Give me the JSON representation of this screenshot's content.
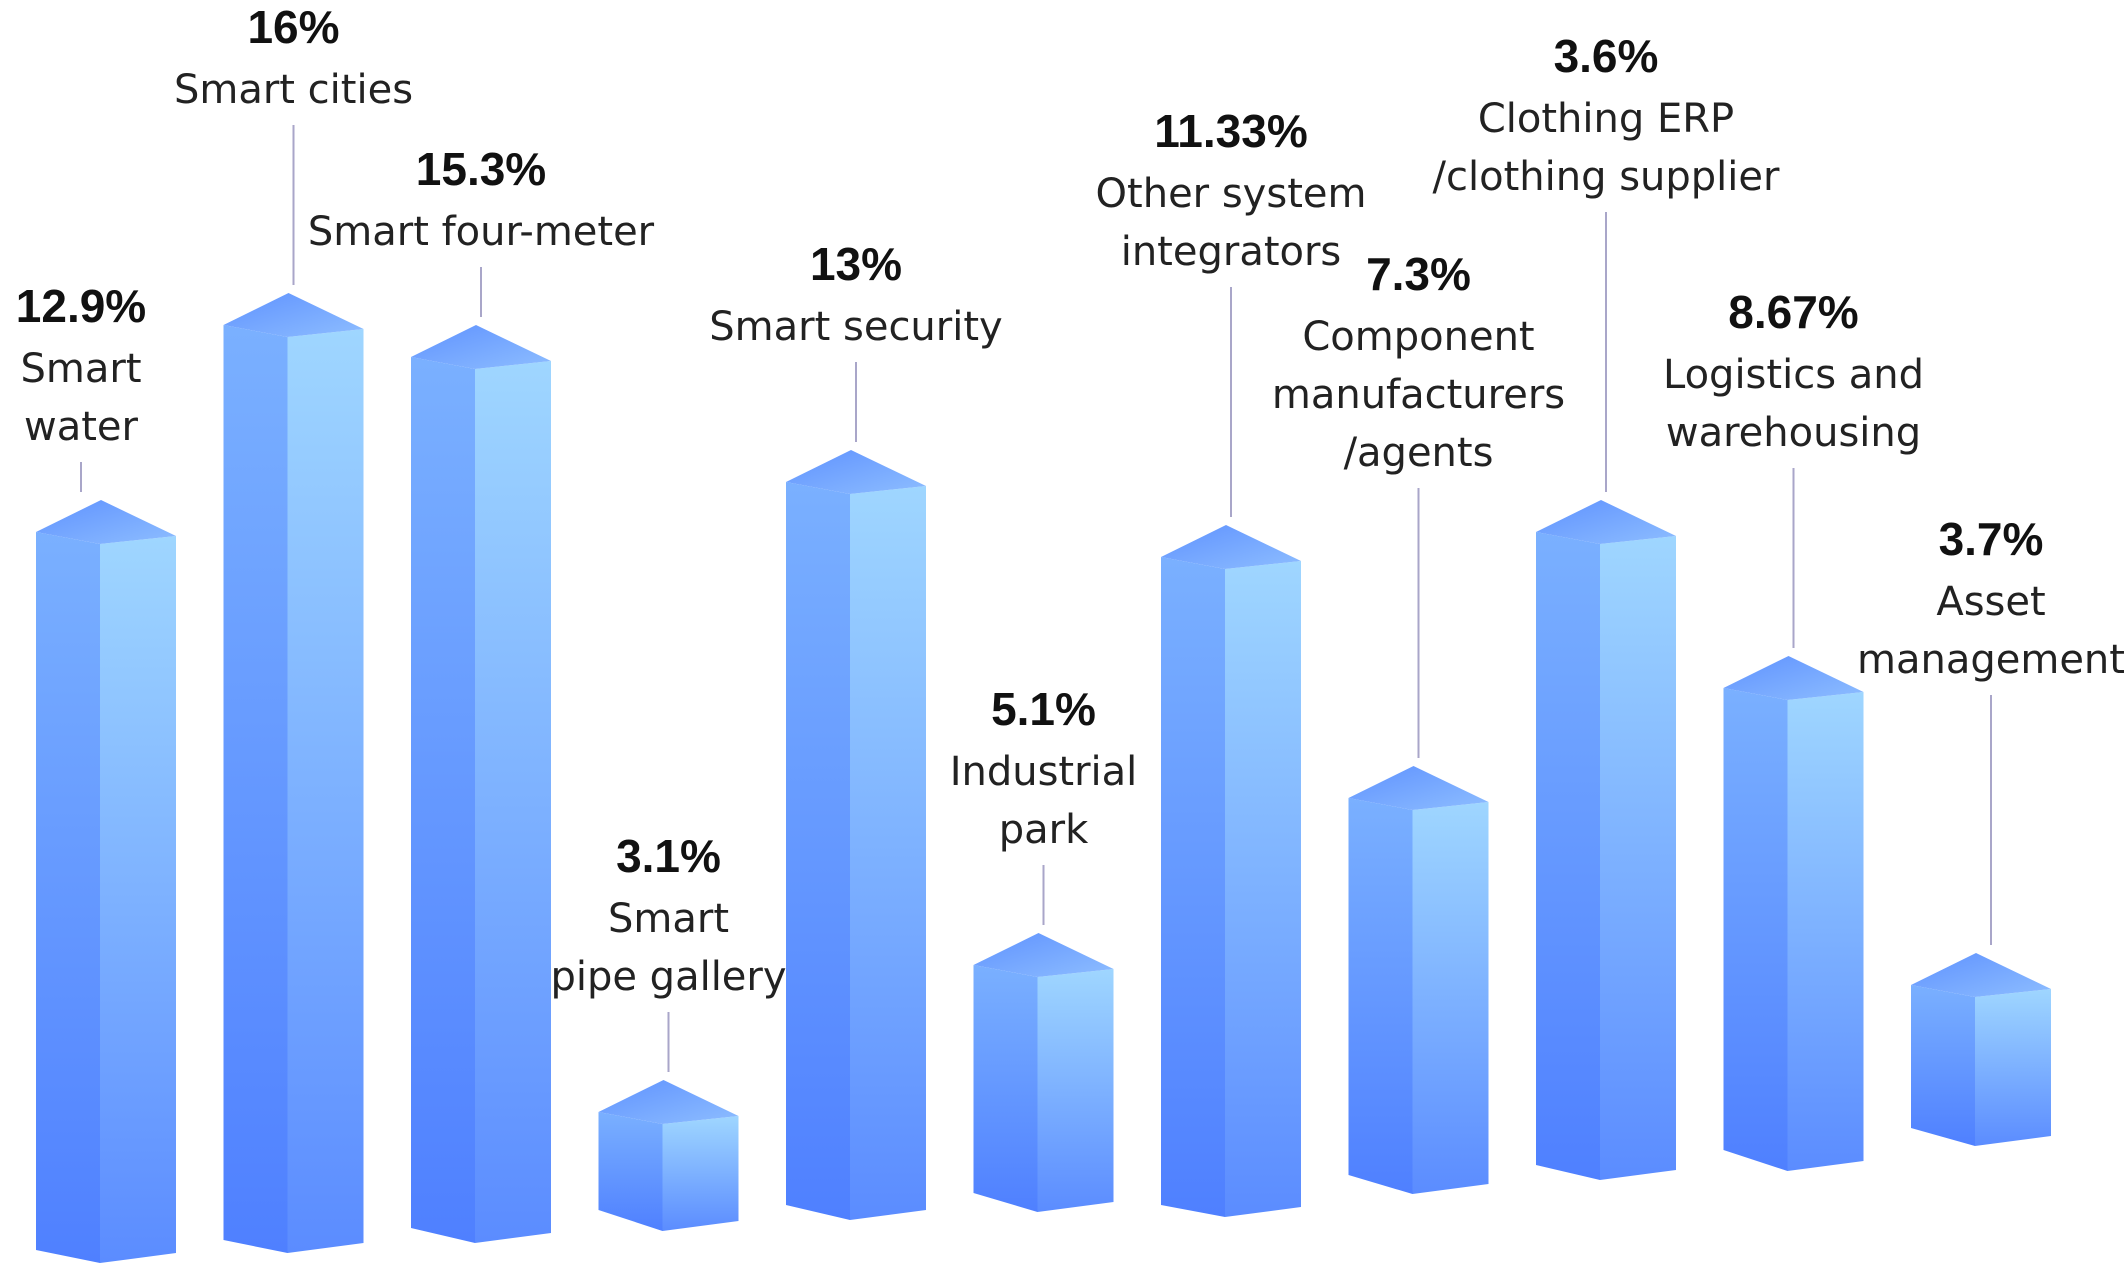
{
  "chart_data": {
    "type": "bar",
    "title": "",
    "xlabel": "",
    "ylabel": "",
    "grid": false,
    "legend": "none",
    "style": "3d-column",
    "colors": {
      "front_top": "#7ab0ff",
      "front_bottom": "#4f80ff",
      "side_top": "#9fd6ff",
      "side_bottom": "#5b8cff",
      "cap": "#6ea0ff",
      "leader": "#a9a6c9",
      "text": "#111111"
    },
    "categories": [
      "Smart water",
      "Smart cities",
      "Smart four-meter",
      "Smart pipe gallery",
      "Smart security",
      "Industrial park",
      "Other system integrators",
      "Component manufacturers /agents",
      "Clothing ERP /clothing supplier",
      "Logistics and warehousing",
      "Asset management"
    ],
    "values": [
      12.9,
      16,
      15.3,
      3.1,
      13,
      5.1,
      11.33,
      7.3,
      3.6,
      8.67,
      3.7
    ],
    "value_labels": [
      "12.9%",
      "16%",
      "15.3%",
      "3.1%",
      "13%",
      "5.1%",
      "11.33%",
      "7.3%",
      "3.6%",
      "8.67%",
      "3.7%"
    ],
    "label_lines": [
      [
        "Smart",
        "water"
      ],
      [
        "Smart cities"
      ],
      [
        "Smart four-meter"
      ],
      [
        "Smart",
        "pipe gallery"
      ],
      [
        "Smart security"
      ],
      [
        "Industrial",
        "park"
      ],
      [
        "Other system",
        "integrators"
      ],
      [
        "Component",
        "manufacturers",
        "/agents"
      ],
      [
        "Clothing ERP",
        "/clothing supplier"
      ],
      [
        "Logistics and",
        "warehousing"
      ],
      [
        "Asset",
        "management"
      ]
    ]
  }
}
